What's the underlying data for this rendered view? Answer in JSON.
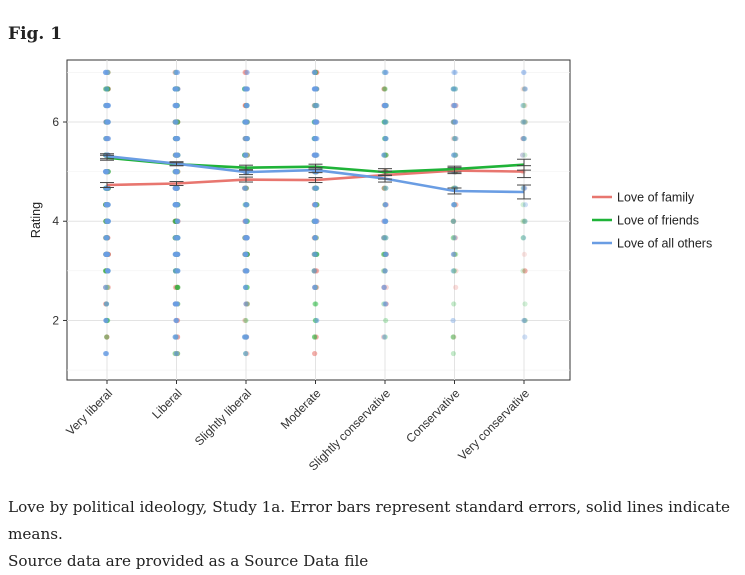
{
  "figure": {
    "label": "Fig. 1",
    "caption_line1": "Love by political ideology, Study 1a. Error bars represent standard errors, solid lines indicate means.",
    "caption_line2": "Source data are provided as a Source Data file"
  },
  "chart_data": {
    "type": "line",
    "title": "",
    "xlabel": "",
    "ylabel": "Rating",
    "categories": [
      "Very liberal",
      "Liberal",
      "Slightly liberal",
      "Moderate",
      "Slightly conservative",
      "Conservative",
      "Very conservative"
    ],
    "ylim": [
      0.8,
      7.25
    ],
    "yticks": [
      2,
      4,
      6
    ],
    "grid": true,
    "legend_position": "right",
    "point_range": [
      1,
      7
    ],
    "series": [
      {
        "name": "Love of family",
        "color": "#e8766f",
        "values": [
          4.73,
          4.76,
          4.84,
          4.83,
          4.93,
          5.02,
          5.0
        ],
        "se": [
          0.05,
          0.04,
          0.05,
          0.05,
          0.08,
          0.06,
          0.12
        ]
      },
      {
        "name": "Love of friends",
        "color": "#1fb338",
        "values": [
          5.28,
          5.15,
          5.08,
          5.1,
          4.99,
          5.05,
          5.14
        ],
        "se": [
          0.05,
          0.03,
          0.05,
          0.05,
          0.07,
          0.06,
          0.11
        ]
      },
      {
        "name": "Love of all others",
        "color": "#6a9de3",
        "values": [
          5.31,
          5.16,
          4.99,
          5.03,
          4.86,
          4.61,
          4.59
        ],
        "se": [
          0.05,
          0.04,
          0.05,
          0.05,
          0.07,
          0.06,
          0.14
        ]
      }
    ],
    "point_density": [
      1.0,
      1.0,
      0.8,
      0.8,
      0.55,
      0.45,
      0.28
    ]
  }
}
